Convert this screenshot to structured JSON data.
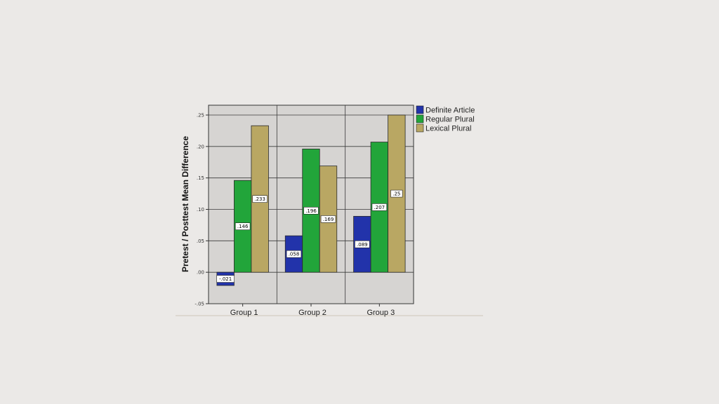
{
  "chart_data": {
    "type": "bar",
    "categories": [
      "Group 1",
      "Group 2",
      "Group 3"
    ],
    "series": [
      {
        "name": "Definite Article",
        "values": [
          -0.021,
          0.058,
          0.089
        ],
        "labels": [
          "-.021",
          ".058",
          ".089"
        ],
        "color": "#2233aa"
      },
      {
        "name": "Regular Plural",
        "values": [
          0.146,
          0.196,
          0.207
        ],
        "labels": [
          ".146",
          ".196",
          ".207"
        ],
        "color": "#22a53a"
      },
      {
        "name": "Lexical Plural",
        "values": [
          0.233,
          0.169,
          0.25
        ],
        "labels": [
          ".233",
          ".169",
          ".25"
        ],
        "color": "#b9a763"
      }
    ],
    "ylabel": "Pretest / Posttest Mean Difference",
    "xlabel": "",
    "ylim": [
      -0.05,
      0.25
    ],
    "yticks": [
      -0.05,
      0.0,
      0.05,
      0.1,
      0.15,
      0.2,
      0.25
    ],
    "ytick_labels": [
      "-.05",
      ".00",
      ".05",
      ".10",
      ".15",
      ".20",
      ".25"
    ],
    "grid": true,
    "legend_position": "top-right outside"
  },
  "colors": {
    "plot_background": "#d6d4d2",
    "gridline": "#3a3a3a",
    "bar_outline": "#2a2a2a"
  }
}
